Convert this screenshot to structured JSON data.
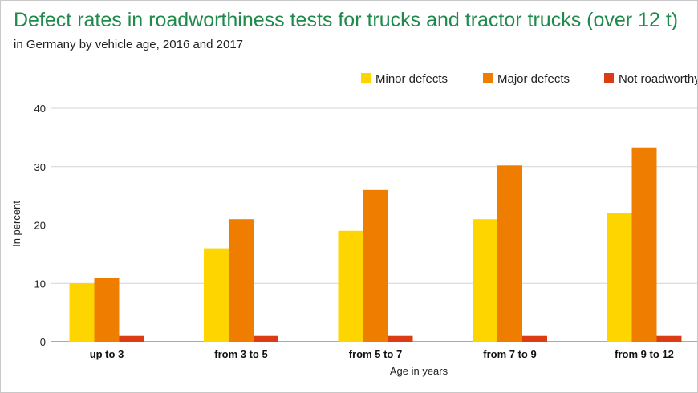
{
  "chart_data": {
    "type": "bar",
    "title": "Defect rates in roadworthiness tests for trucks and tractor trucks (over 12 t)",
    "subtitle": "in Germany by vehicle age, 2016 and 2017",
    "xlabel": "Age in years",
    "ylabel": "In percent",
    "categories": [
      "up to 3",
      "from 3 to 5",
      "from 5 to 7",
      "from 7 to 9",
      "from 9 to 12"
    ],
    "series": [
      {
        "name": "Minor defects",
        "color": "#ffd500",
        "values": [
          10,
          16,
          19,
          21,
          22
        ]
      },
      {
        "name": "Major defects",
        "color": "#ee7d00",
        "values": [
          11,
          21,
          26,
          30.2,
          33.3
        ]
      },
      {
        "name": "Not roadworthy",
        "color": "#dc3c14",
        "values": [
          1,
          1,
          1,
          1,
          1
        ]
      }
    ],
    "ylim": [
      0,
      40
    ],
    "yticks": [
      0,
      10,
      20,
      30,
      40
    ],
    "grid": true,
    "legend_position": "top-right"
  }
}
